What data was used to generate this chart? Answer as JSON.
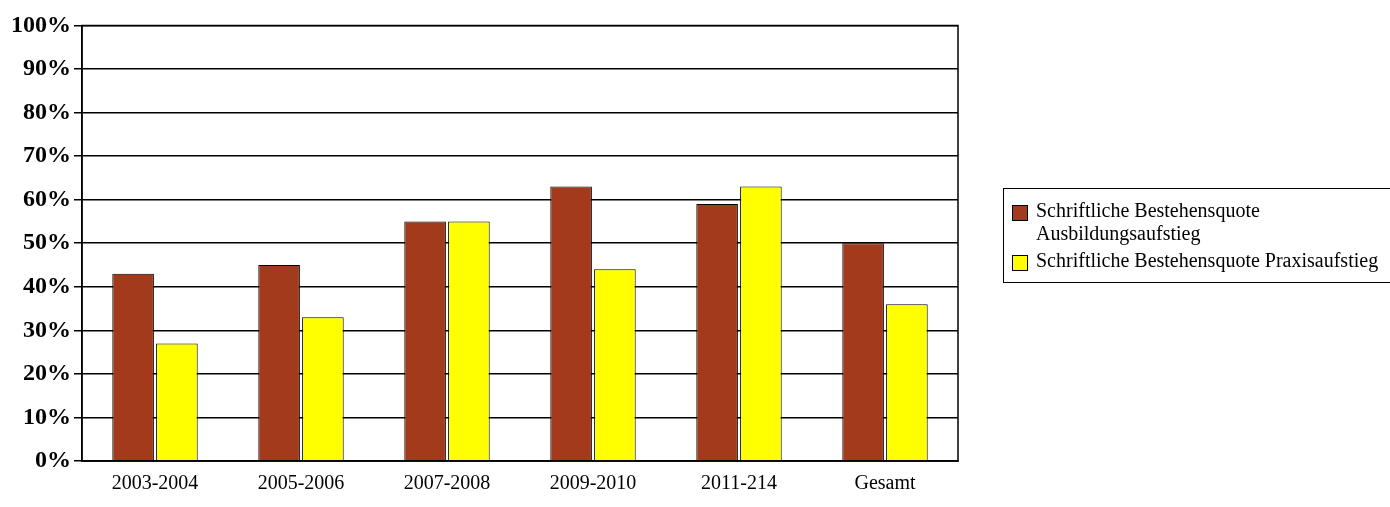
{
  "chart_data": {
    "type": "bar",
    "categories": [
      "2003-2004",
      "2005-2006",
      "2007-2008",
      "2009-2010",
      "2011-214",
      "Gesamt"
    ],
    "series": [
      {
        "name": "Schriftliche Bestehensquote Ausbildungsaufstieg",
        "color": "#a33a1c",
        "values": [
          43,
          45,
          55,
          63,
          59,
          50
        ]
      },
      {
        "name": "Schriftliche Bestehensquote Praxisaufstieg",
        "color": "#ffff00",
        "values": [
          27,
          33,
          55,
          44,
          63,
          36
        ]
      }
    ],
    "ylim": [
      0,
      100
    ],
    "yticks": [
      {
        "value": 0,
        "label": "0%"
      },
      {
        "value": 10,
        "label": "10%"
      },
      {
        "value": 20,
        "label": "20%"
      },
      {
        "value": 30,
        "label": "30%"
      },
      {
        "value": 40,
        "label": "40%"
      },
      {
        "value": 50,
        "label": "50%"
      },
      {
        "value": 60,
        "label": "60%"
      },
      {
        "value": 70,
        "label": "70%"
      },
      {
        "value": 80,
        "label": "80%"
      },
      {
        "value": 90,
        "label": "90%"
      },
      {
        "value": 100,
        "label": "100%"
      }
    ],
    "grid": "y",
    "legend": "right"
  }
}
